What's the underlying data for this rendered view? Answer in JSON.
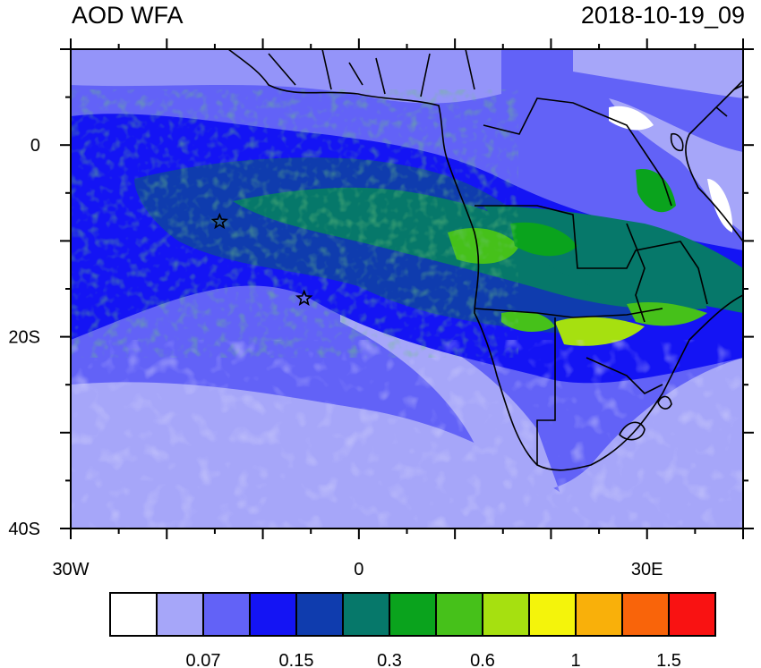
{
  "header": {
    "title": "AOD WFA",
    "timestamp": "2018-10-19_09"
  },
  "map": {
    "lon_range": [
      -30,
      40
    ],
    "lat_range": [
      -40,
      10
    ],
    "x_ticks": [
      {
        "value": -30,
        "label": "30W"
      },
      {
        "value": 0,
        "label": "0"
      },
      {
        "value": 30,
        "label": "30E"
      }
    ],
    "y_ticks": [
      {
        "value": 0,
        "label": "0"
      },
      {
        "value": -20,
        "label": "20S"
      },
      {
        "value": -40,
        "label": "40S"
      }
    ],
    "markers": [
      {
        "name": "star-marker-west",
        "lon": -14.5,
        "lat": -8
      },
      {
        "name": "star-marker-south",
        "lon": -5.7,
        "lat": -16
      }
    ]
  },
  "colorbar": {
    "colors": [
      "#ffffff",
      "#a6a6f9",
      "#6262f7",
      "#1414f4",
      "#0f3cae",
      "#06786a",
      "#0aa31d",
      "#46c11a",
      "#a6e010",
      "#f4f40b",
      "#f9b00a",
      "#f9640a",
      "#f91212"
    ],
    "labels": [
      "0.07",
      "0.15",
      "0.3",
      "0.6",
      "1",
      "1.5"
    ]
  }
}
